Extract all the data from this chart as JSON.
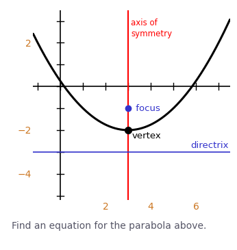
{
  "vertex": [
    3,
    -2
  ],
  "focus": [
    3,
    -1
  ],
  "axis_of_symmetry_x": 3,
  "directrix_y": -3,
  "p": 1,
  "xlim": [
    -1.2,
    7.5
  ],
  "ylim": [
    -5.2,
    3.5
  ],
  "xticks": [
    2,
    4,
    6
  ],
  "yticks": [
    -4,
    -2,
    2
  ],
  "all_xticks": [
    -1,
    0,
    1,
    2,
    3,
    4,
    5,
    6,
    7
  ],
  "all_yticks": [
    -5,
    -4,
    -3,
    -2,
    -1,
    0,
    1,
    2,
    3
  ],
  "parabola_color": "#000000",
  "axis_sym_color": "#ff0000",
  "directrix_color": "#3333cc",
  "focus_color": "#3333cc",
  "vertex_color": "#000000",
  "tick_label_color": "#cc7722",
  "axis_sym_label": "axis of\nsymmetry",
  "axis_sym_label_color": "#ff0000",
  "focus_label": " focus",
  "focus_label_color": "#3333cc",
  "vertex_label": "vertex",
  "vertex_label_color": "#000000",
  "directrix_label": "directrix",
  "directrix_label_color": "#3333cc",
  "bottom_text": "Find an equation for the parabola above.",
  "bottom_text_color": "#555566",
  "background_color": "#ffffff",
  "figsize": [
    3.46,
    3.65
  ],
  "dpi": 100
}
